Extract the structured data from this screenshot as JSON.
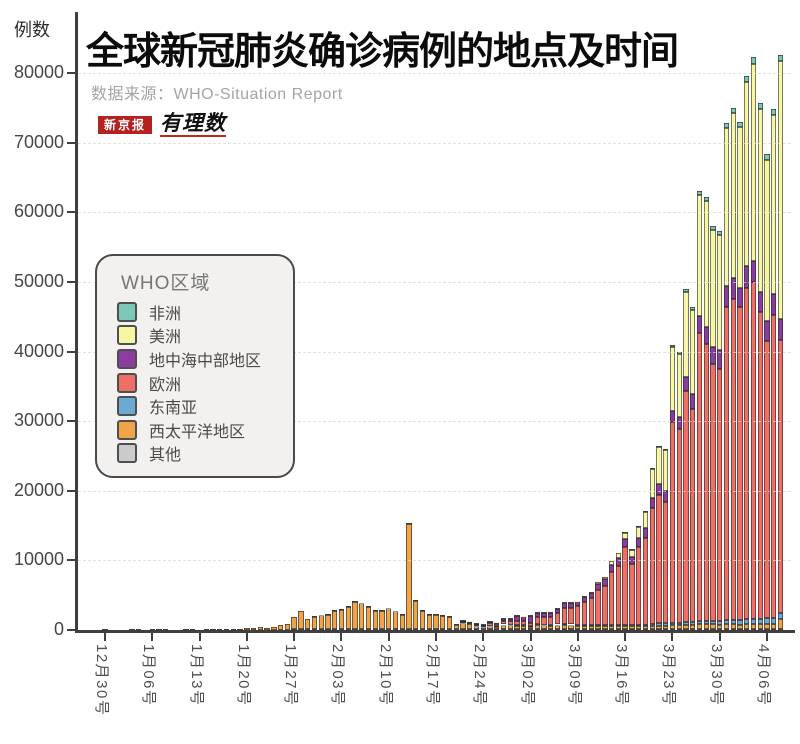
{
  "header": {
    "title": "全球新冠肺炎确诊病例的地点及时间",
    "source": "数据来源：WHO-Situation Report",
    "logo_primary": "新京报",
    "logo_secondary": "有理数",
    "y_axis_unit": "例数"
  },
  "legend": {
    "title": "WHO区域",
    "items": [
      {
        "label": "非洲",
        "color": "#7cc8b6"
      },
      {
        "label": "美洲",
        "color": "#f6f6a4"
      },
      {
        "label": "地中海中部地区",
        "color": "#8a3d9e"
      },
      {
        "label": "欧洲",
        "color": "#ef6f66"
      },
      {
        "label": "东南亚",
        "color": "#6ca9d4"
      },
      {
        "label": "西太平洋地区",
        "color": "#f0a348"
      },
      {
        "label": "其他",
        "color": "#cbcbcb"
      }
    ]
  },
  "chart_data": {
    "type": "bar",
    "stacked": true,
    "title": "全球新冠肺炎确诊病例的地点及时间",
    "xlabel": "",
    "ylabel": "例数",
    "ylim": [
      0,
      80000
    ],
    "yticks": [
      0,
      10000,
      20000,
      30000,
      40000,
      50000,
      60000,
      70000,
      80000
    ],
    "grid": "horizontal-dashed",
    "legend_position": "upper-left-overlay",
    "x_tick_labels": [
      "12月30号",
      "1月06号",
      "1月13号",
      "1月20号",
      "1月27号",
      "2月03号",
      "2月10号",
      "2月17号",
      "2月24号",
      "3月02号",
      "3月09号",
      "3月16号",
      "3月23号",
      "3月30号",
      "4月06号"
    ],
    "x_tick_interval_days": 7,
    "dates": [
      "12-30",
      "12-31",
      "1-1",
      "1-2",
      "1-3",
      "1-4",
      "1-5",
      "1-6",
      "1-7",
      "1-8",
      "1-9",
      "1-10",
      "1-11",
      "1-12",
      "1-13",
      "1-14",
      "1-15",
      "1-16",
      "1-17",
      "1-18",
      "1-19",
      "1-20",
      "1-21",
      "1-22",
      "1-23",
      "1-24",
      "1-25",
      "1-26",
      "1-27",
      "1-28",
      "1-29",
      "1-30",
      "1-31",
      "2-1",
      "2-2",
      "2-3",
      "2-4",
      "2-5",
      "2-6",
      "2-7",
      "2-8",
      "2-9",
      "2-10",
      "2-11",
      "2-12",
      "2-13",
      "2-14",
      "2-15",
      "2-16",
      "2-17",
      "2-18",
      "2-19",
      "2-20",
      "2-21",
      "2-22",
      "2-23",
      "2-24",
      "2-25",
      "2-26",
      "2-27",
      "2-28",
      "2-29",
      "3-1",
      "3-2",
      "3-3",
      "3-4",
      "3-5",
      "3-6",
      "3-7",
      "3-8",
      "3-9",
      "3-10",
      "3-11",
      "3-12",
      "3-13",
      "3-14",
      "3-15",
      "3-16",
      "3-17",
      "3-18",
      "3-19",
      "3-20",
      "3-21",
      "3-22",
      "3-23",
      "3-24",
      "3-25",
      "3-26",
      "3-27",
      "3-28",
      "3-29",
      "3-30",
      "3-31",
      "4-1",
      "4-2",
      "4-3",
      "4-4",
      "4-5",
      "4-6",
      "4-7",
      "4-8"
    ],
    "series": [
      {
        "name": "其他",
        "color": "#cbcbcb",
        "values": [
          30,
          0,
          0,
          0,
          150,
          170,
          0,
          60,
          0,
          160,
          0,
          0,
          0,
          0,
          0,
          0,
          0,
          0,
          0,
          0,
          0,
          0,
          0,
          0,
          0,
          0,
          0,
          0,
          10,
          10,
          10,
          10,
          10,
          10,
          10,
          10,
          10,
          10,
          10,
          10,
          10,
          10,
          10,
          10,
          10,
          30,
          20,
          20,
          20,
          20,
          20,
          20,
          20,
          20,
          20,
          20,
          20,
          20,
          20,
          20,
          20,
          20,
          30,
          30,
          30,
          30,
          30,
          30,
          30,
          30,
          30,
          30,
          30,
          30,
          30,
          30,
          30,
          80,
          80,
          80,
          80,
          80,
          80,
          80,
          150,
          150,
          150,
          150,
          150,
          150,
          150,
          150,
          150,
          150,
          150,
          150,
          150,
          150,
          150,
          150,
          150
        ]
      },
      {
        "name": "西太平洋地区",
        "color": "#f0a348",
        "values": [
          0,
          0,
          0,
          0,
          0,
          0,
          0,
          0,
          150,
          0,
          0,
          0,
          150,
          140,
          0,
          40,
          20,
          150,
          60,
          90,
          140,
          230,
          310,
          440,
          280,
          460,
          700,
          790,
          1770,
          2590,
          1460,
          1740,
          1980,
          2110,
          2600,
          2820,
          3230,
          3880,
          3710,
          3190,
          2660,
          2590,
          2990,
          2550,
          2050,
          15120,
          4030,
          2630,
          2110,
          2030,
          1870,
          1730,
          600,
          820,
          750,
          410,
          250,
          400,
          370,
          560,
          540,
          480,
          480,
          380,
          570,
          550,
          530,
          560,
          590,
          560,
          480,
          500,
          510,
          510,
          520,
          500,
          490,
          480,
          470,
          470,
          470,
          500,
          520,
          520,
          550,
          540,
          580,
          590,
          670,
          670,
          650,
          630,
          650,
          680,
          630,
          720,
          710,
          690,
          690,
          700,
          1380
        ]
      },
      {
        "name": "东南亚",
        "color": "#6ca9d4",
        "values": [
          0,
          0,
          0,
          0,
          0,
          0,
          0,
          0,
          0,
          0,
          0,
          0,
          0,
          0,
          0,
          0,
          0,
          0,
          0,
          0,
          0,
          0,
          0,
          0,
          0,
          0,
          0,
          0,
          0,
          0,
          0,
          10,
          10,
          10,
          10,
          10,
          10,
          10,
          10,
          10,
          10,
          10,
          10,
          10,
          10,
          20,
          20,
          20,
          20,
          20,
          20,
          20,
          20,
          10,
          10,
          10,
          10,
          10,
          10,
          10,
          10,
          10,
          30,
          30,
          30,
          30,
          30,
          30,
          40,
          40,
          40,
          60,
          70,
          80,
          100,
          120,
          130,
          130,
          140,
          150,
          190,
          250,
          300,
          330,
          340,
          370,
          380,
          390,
          460,
          480,
          460,
          560,
          600,
          630,
          680,
          710,
          760,
          780,
          830,
          890,
          900
        ]
      },
      {
        "name": "欧洲",
        "color": "#ef6f66",
        "values": [
          0,
          0,
          0,
          0,
          0,
          0,
          0,
          0,
          0,
          0,
          0,
          0,
          0,
          0,
          0,
          0,
          0,
          0,
          0,
          0,
          0,
          0,
          0,
          0,
          0,
          0,
          0,
          0,
          0,
          0,
          0,
          0,
          0,
          0,
          0,
          0,
          0,
          0,
          0,
          0,
          0,
          0,
          0,
          0,
          0,
          0,
          0,
          0,
          0,
          0,
          0,
          0,
          0,
          30,
          100,
          110,
          130,
          320,
          330,
          540,
          480,
          570,
          650,
          400,
          1100,
          1050,
          1100,
          1660,
          2310,
          2360,
          2760,
          3280,
          3800,
          5000,
          5600,
          7560,
          8480,
          11170,
          8700,
          11250,
          12500,
          16700,
          18500,
          17400,
          28800,
          27800,
          33200,
          30600,
          41400,
          39800,
          36900,
          36200,
          45000,
          46100,
          44900,
          47600,
          48300,
          44000,
          39900,
          43500,
          39200
        ]
      },
      {
        "name": "地中海中部地区",
        "color": "#8a3d9e",
        "values": [
          0,
          0,
          0,
          0,
          0,
          0,
          0,
          0,
          0,
          0,
          0,
          0,
          0,
          0,
          0,
          0,
          0,
          0,
          0,
          0,
          0,
          0,
          0,
          0,
          0,
          0,
          0,
          0,
          0,
          0,
          0,
          0,
          0,
          0,
          0,
          0,
          0,
          0,
          0,
          0,
          0,
          0,
          0,
          0,
          0,
          0,
          0,
          0,
          0,
          0,
          0,
          0,
          0,
          30,
          150,
          130,
          140,
          180,
          170,
          250,
          340,
          690,
          600,
          1050,
          550,
          590,
          600,
          630,
          790,
          690,
          630,
          740,
          780,
          850,
          920,
          1080,
          1130,
          1170,
          1100,
          1250,
          1340,
          1410,
          1500,
          1530,
          1620,
          1680,
          2060,
          2200,
          2350,
          2480,
          2550,
          2710,
          3070,
          2970,
          2720,
          3030,
          3110,
          2860,
          2760,
          3060,
          3000
        ]
      },
      {
        "name": "美洲",
        "color": "#f6f6a4",
        "values": [
          0,
          0,
          0,
          0,
          0,
          0,
          0,
          0,
          0,
          0,
          0,
          0,
          0,
          0,
          0,
          0,
          0,
          0,
          0,
          0,
          0,
          0,
          0,
          0,
          0,
          0,
          0,
          0,
          0,
          0,
          0,
          0,
          0,
          0,
          0,
          0,
          0,
          0,
          0,
          0,
          0,
          0,
          0,
          0,
          0,
          0,
          0,
          0,
          0,
          0,
          0,
          0,
          0,
          10,
          10,
          10,
          10,
          10,
          10,
          20,
          20,
          20,
          20,
          20,
          20,
          20,
          20,
          30,
          60,
          60,
          70,
          100,
          120,
          240,
          340,
          520,
          650,
          900,
          1030,
          1600,
          2400,
          4200,
          5300,
          5900,
          9200,
          9100,
          12200,
          12000,
          17500,
          18000,
          16800,
          16500,
          22700,
          23700,
          23100,
          26500,
          28300,
          26300,
          23200,
          25700,
          37100
        ]
      },
      {
        "name": "非洲",
        "color": "#7cc8b6",
        "values": [
          0,
          0,
          0,
          0,
          0,
          0,
          0,
          0,
          0,
          0,
          0,
          0,
          0,
          0,
          0,
          0,
          0,
          0,
          0,
          0,
          0,
          0,
          0,
          0,
          0,
          0,
          0,
          0,
          0,
          0,
          0,
          0,
          0,
          0,
          0,
          0,
          0,
          0,
          0,
          0,
          0,
          0,
          0,
          0,
          0,
          0,
          0,
          0,
          0,
          0,
          0,
          0,
          0,
          0,
          0,
          0,
          0,
          0,
          0,
          0,
          0,
          0,
          0,
          0,
          0,
          0,
          0,
          0,
          0,
          0,
          0,
          0,
          0,
          0,
          0,
          0,
          0,
          30,
          40,
          60,
          80,
          120,
          160,
          200,
          270,
          290,
          360,
          400,
          500,
          550,
          520,
          580,
          660,
          700,
          750,
          820,
          900,
          850,
          800,
          830,
          900
        ]
      }
    ]
  }
}
